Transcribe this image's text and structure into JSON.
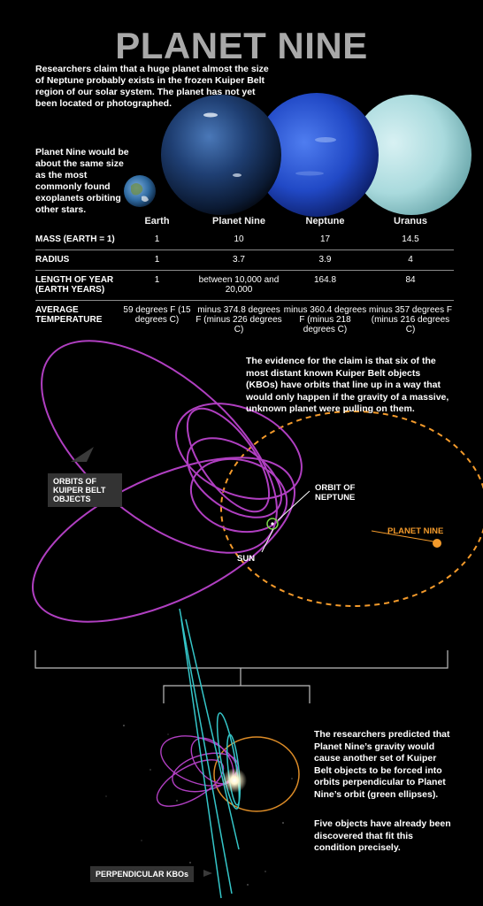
{
  "title": "PLANET NINE",
  "intro": "Researchers claim that a huge planet almost the size of Neptune probably exists in the frozen Kuiper Belt region of our solar system. The planet has not yet been located or photographed.",
  "exoplanet_note": "Planet Nine would be about the same size as the most commonly found exoplanets orbiting other stars.",
  "table": {
    "columns": [
      "Earth",
      "Planet Nine",
      "Neptune",
      "Uranus"
    ],
    "rows": [
      {
        "label": "MASS (EARTH = 1)",
        "values": [
          "1",
          "10",
          "17",
          "14.5"
        ]
      },
      {
        "label": "RADIUS",
        "values": [
          "1",
          "3.7",
          "3.9",
          "4"
        ]
      },
      {
        "label": "LENGTH OF YEAR (EARTH YEARS)",
        "values": [
          "1",
          "between 10,000 and 20,000",
          "164.8",
          "84"
        ]
      },
      {
        "label": "AVERAGE TEMPERATURE",
        "values": [
          "59 degrees F (15 degrees C)",
          "minus 374.8 degrees F (minus 226 degrees C)",
          "minus 360.4 degrees F (minus 218 degrees C)",
          "minus 357 degrees F (minus 216 degrees C)"
        ]
      }
    ]
  },
  "evidence": "The evidence for the claim is that six of the most distant known Kuiper Belt objects (KBOs) have orbits that line up in a way that would only happen if the gravity of a massive, unknown planet were pulling on them.",
  "labels": {
    "kbo_orbits": "ORBITS OF KUIPER BELT OBJECTS",
    "neptune_orbit": "ORBIT OF NEPTUNE",
    "sun": "SUN",
    "planet_nine": "PLANET NINE",
    "perpendicular": "PERPENDICULAR KBOs"
  },
  "prediction": "The researchers predicted that Planet Nine’s gravity would cause another set of Kuiper Belt objects to be forced into orbits perpendicular to Planet Nine’s orbit (green ellipses).",
  "discovered": "Five objects have already been discovered that fit this condition precisely.",
  "colors": {
    "kbo": "#b03fc1",
    "planet_nine": "#f39a2b",
    "perpendicular": "#35c6c9",
    "neptune_orbit": "#7ad64b"
  }
}
